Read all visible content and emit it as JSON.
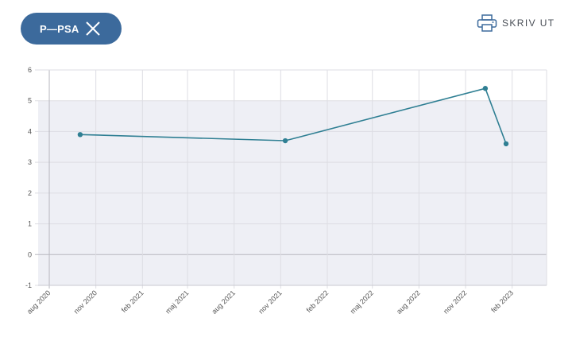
{
  "filter_chip": {
    "label": "P—PSA",
    "close_icon": "close-icon"
  },
  "print": {
    "label": "SKRIV UT",
    "icon": "printer-icon"
  },
  "colors": {
    "accent": "#3c6a9c",
    "series": "#2f7f93",
    "band": "#eeeff5",
    "grid": "#dddde3"
  },
  "chart_data": {
    "type": "line",
    "series": [
      {
        "points": [
          {
            "x": "2020-10-01",
            "y": 3.9
          },
          {
            "x": "2021-11-10",
            "y": 3.7
          },
          {
            "x": "2022-12-10",
            "y": 5.4
          },
          {
            "x": "2023-01-20",
            "y": 3.6
          }
        ]
      }
    ],
    "xlim": [
      "2020-07-10",
      "2023-04-10"
    ],
    "ylim": [
      -1,
      6
    ],
    "shaded_y_range": [
      -1,
      5
    ],
    "y_ticks": [
      -1,
      0,
      1,
      2,
      3,
      4,
      5,
      6
    ],
    "x_ticks": [
      {
        "date": "2020-08-01",
        "label": "aug 2020"
      },
      {
        "date": "2020-11-01",
        "label": "nov 2020"
      },
      {
        "date": "2021-02-01",
        "label": "feb 2021"
      },
      {
        "date": "2021-05-01",
        "label": "maj 2021"
      },
      {
        "date": "2021-08-01",
        "label": "aug 2021"
      },
      {
        "date": "2021-11-01",
        "label": "nov 2021"
      },
      {
        "date": "2022-02-01",
        "label": "feb 2022"
      },
      {
        "date": "2022-05-01",
        "label": "maj 2022"
      },
      {
        "date": "2022-08-01",
        "label": "aug 2022"
      },
      {
        "date": "2022-11-01",
        "label": "nov 2022"
      },
      {
        "date": "2023-02-01",
        "label": "feb 2023"
      }
    ],
    "grid": true,
    "legend": false
  }
}
